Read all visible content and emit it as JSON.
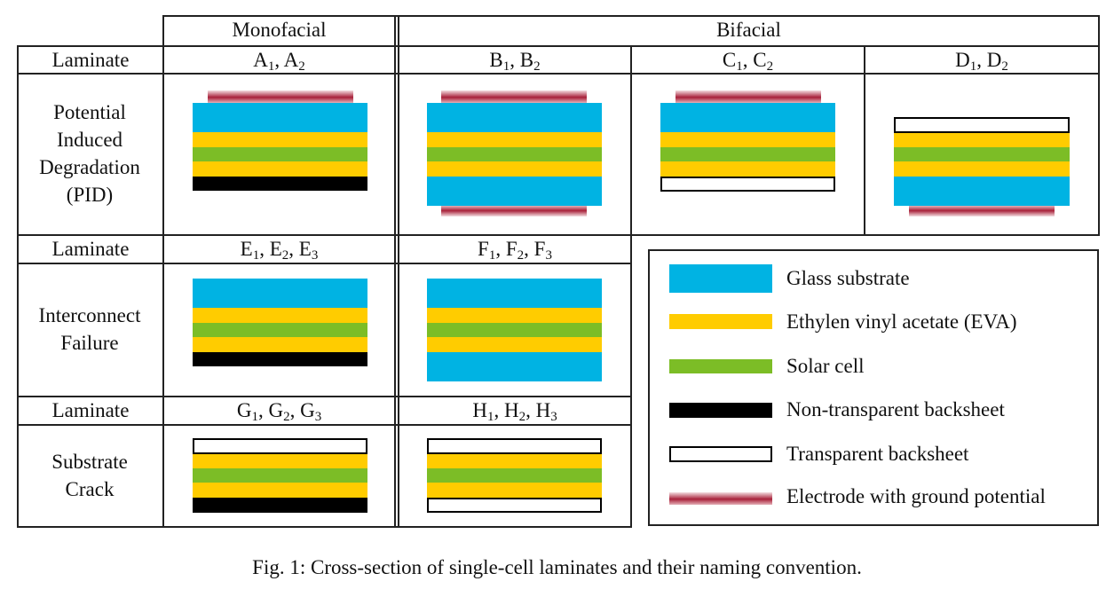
{
  "header": {
    "monofacial": "Monofacial",
    "bifacial": "Bifacial"
  },
  "rows": {
    "laminate_label": "Laminate",
    "pid": {
      "label": "Potential Induced Degradation (PID)"
    },
    "interconnect": {
      "label": "Interconnect Failure"
    },
    "substrate": {
      "label": "Substrate Crack"
    }
  },
  "samples": {
    "a": {
      "letter": "A",
      "n1": "1",
      "n2": "2"
    },
    "b": {
      "letter": "B",
      "n1": "1",
      "n2": "2"
    },
    "c": {
      "letter": "C",
      "n1": "1",
      "n2": "2"
    },
    "d": {
      "letter": "D",
      "n1": "1",
      "n2": "2"
    },
    "e": {
      "letter": "E",
      "n1": "1",
      "n2": "2",
      "n3": "3"
    },
    "f": {
      "letter": "F",
      "n1": "1",
      "n2": "2",
      "n3": "3"
    },
    "g": {
      "letter": "G",
      "n1": "1",
      "n2": "2",
      "n3": "3"
    },
    "h": {
      "letter": "H",
      "n1": "1",
      "n2": "2",
      "n3": "3"
    }
  },
  "legend": [
    {
      "key": "glass",
      "label": "Glass substrate",
      "color": "#00b3e3"
    },
    {
      "key": "eva",
      "label": "Ethylen vinyl acetate (EVA)",
      "color": "#ffcc00"
    },
    {
      "key": "cell",
      "label": "Solar cell",
      "color": "#7cbd26"
    },
    {
      "key": "back",
      "label": "Non-transparent backsheet",
      "color": "#000000"
    },
    {
      "key": "trans",
      "label": "Transparent backsheet",
      "color": "#ffffff"
    },
    {
      "key": "elec",
      "label": "Electrode with ground potential",
      "color": "#a8213a"
    }
  ],
  "caption": "Fig. 1: Cross-section of single-cell laminates and their naming convention."
}
